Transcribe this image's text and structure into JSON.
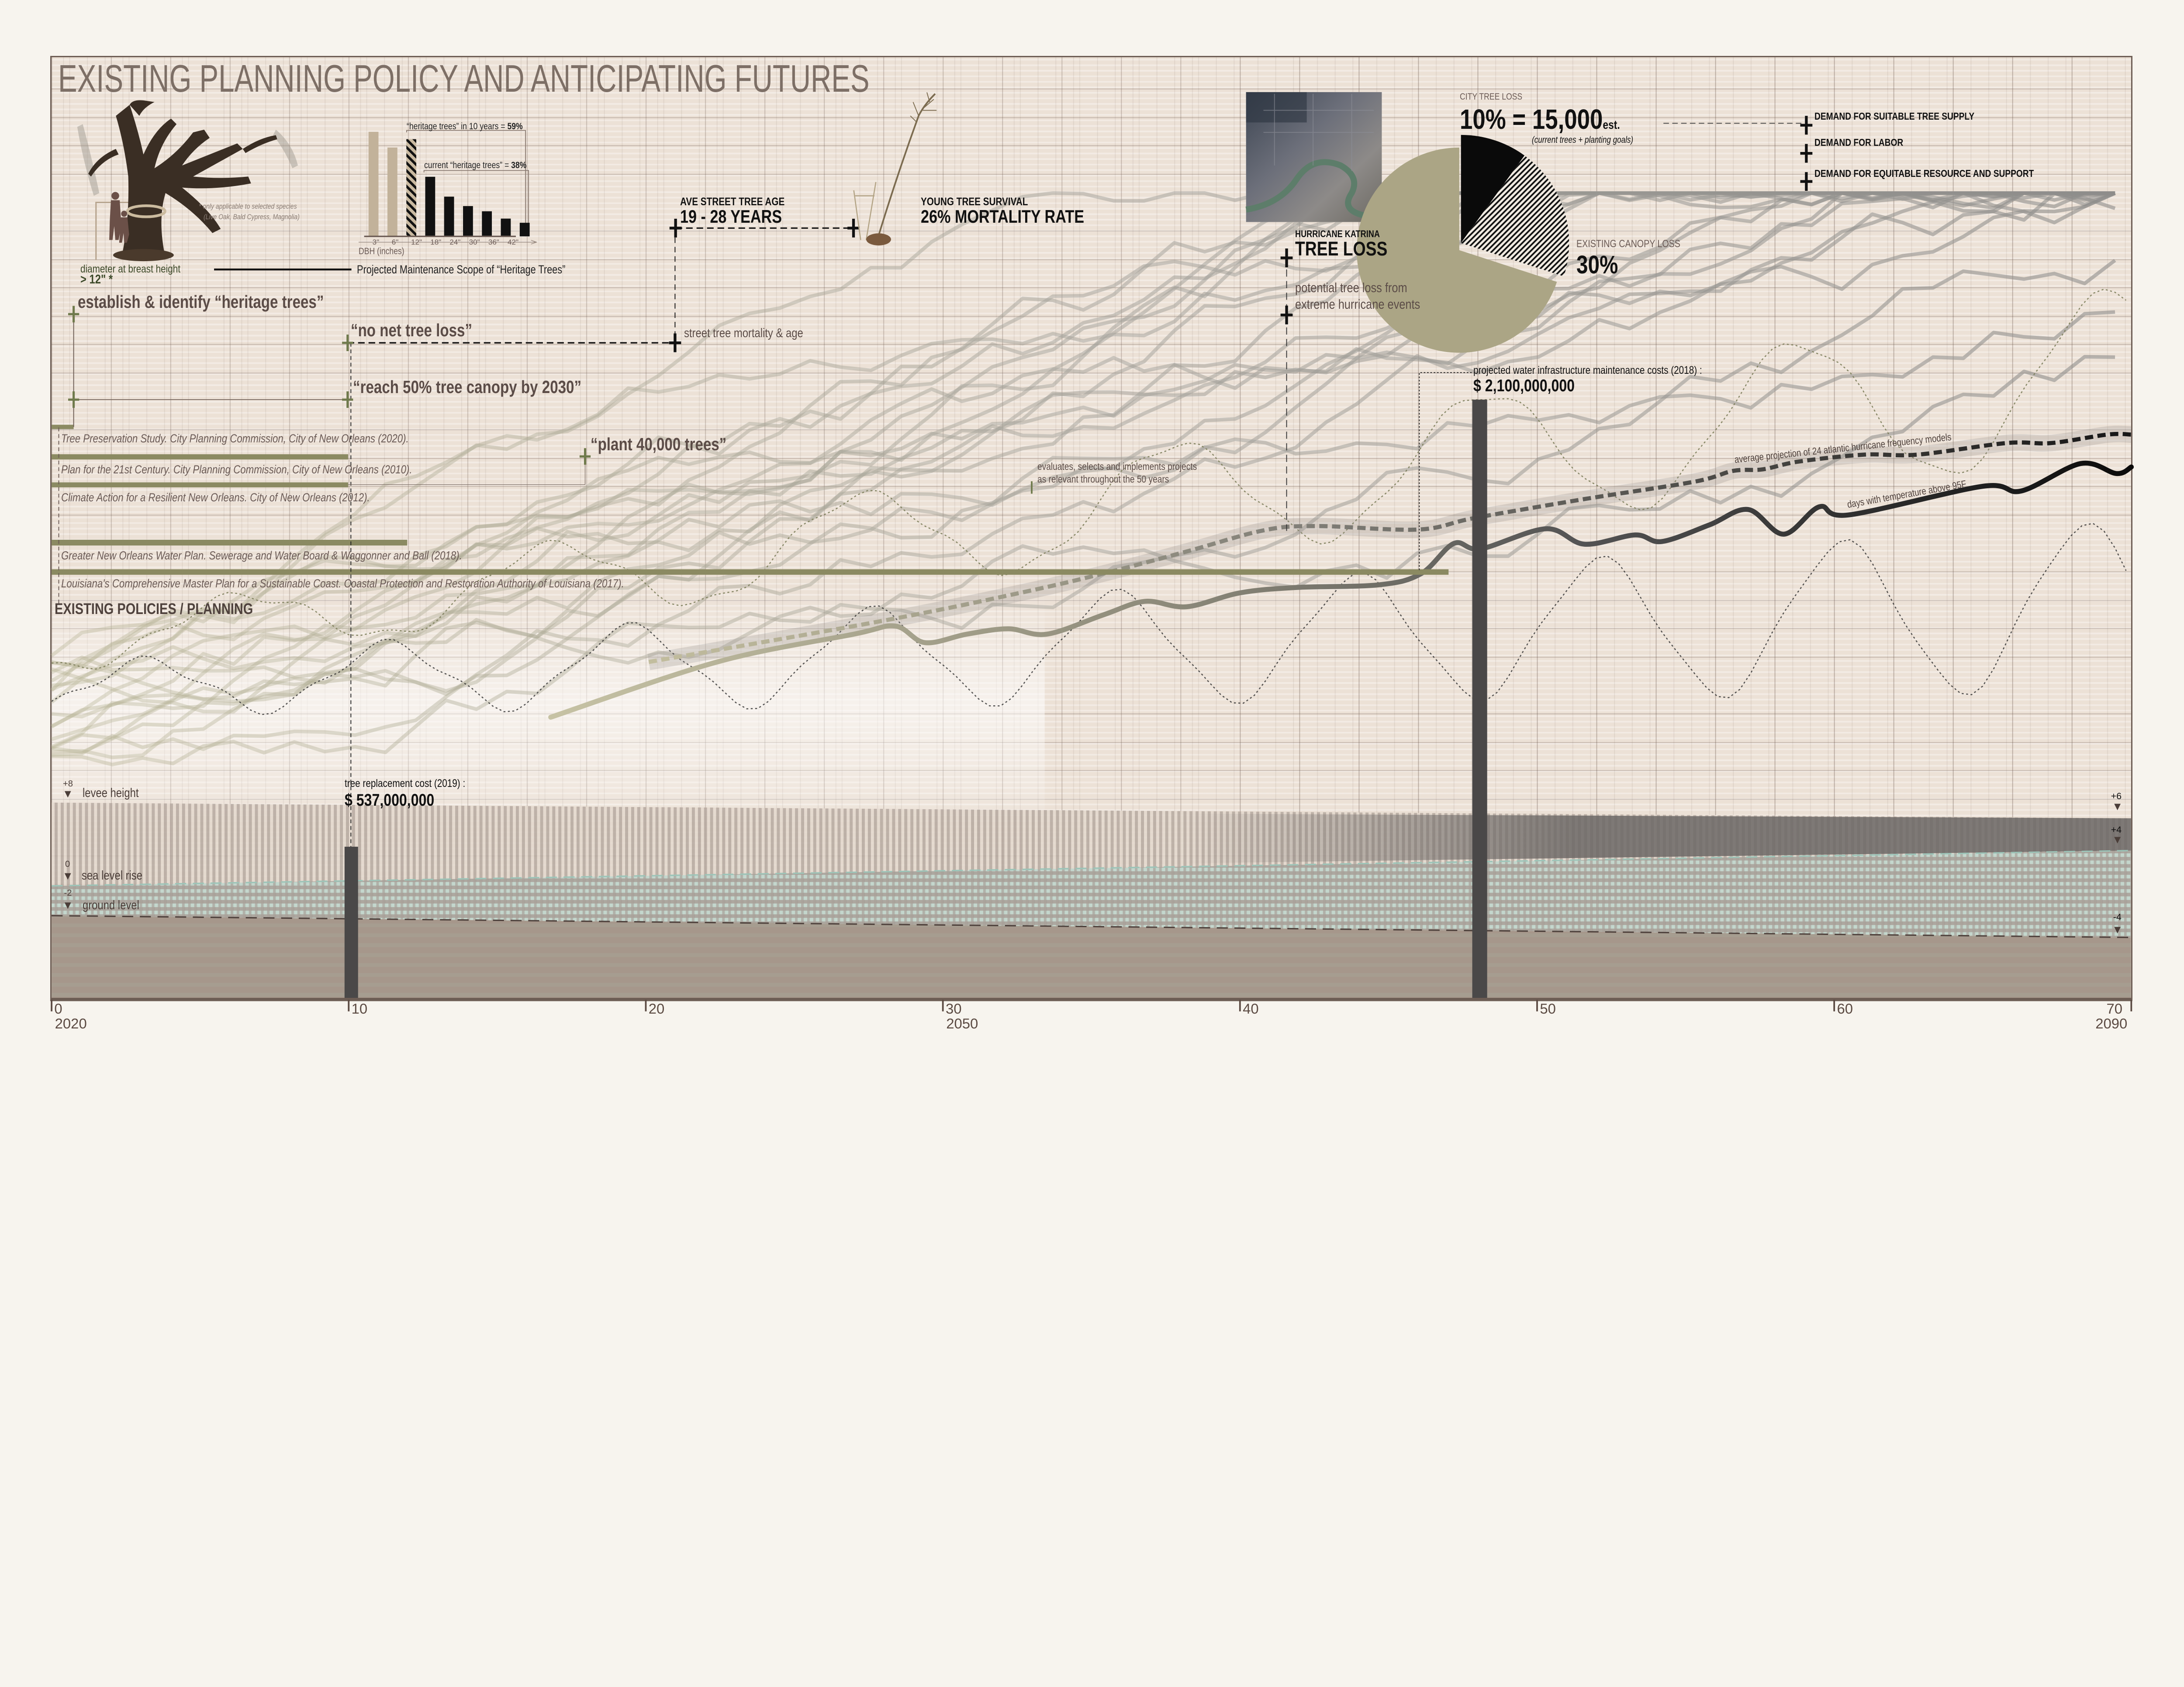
{
  "title": "EXISTING PLANNING POLICY AND ANTICIPATING FUTURES",
  "colors": {
    "olive": "#8b8a62",
    "olive_marker": "#6f7a4c",
    "frame": "#6d5d54",
    "pie_olive": "#aba585",
    "bar_dark": "#4a4848",
    "water": "#bcd6cd",
    "ground": "#a6978b"
  },
  "heritage": {
    "note_line1": "* only applicable to selected species",
    "note_line2": "(Live Oak, Bald Cypress, Magnolia)",
    "dbh_label": "diameter at breast height",
    "dbh_value": "> 12\" *",
    "scope_title": "Projected Maintenance Scope of “Heritage Trees”",
    "in10_label": "“heritage trees” in 10 years = ",
    "in10_value": "59%",
    "current_label": "current “heritage trees” = ",
    "current_value": "38%"
  },
  "street_tree": {
    "age_label": "AVE STREET TREE AGE",
    "age_value": "19 - 28 YEARS",
    "survival_label": "YOUNG TREE SURVIVAL",
    "survival_value": "26% MORTALITY RATE",
    "mortality_note": "street tree mortality & age"
  },
  "goals": {
    "heritage": "establish & identify “heritage trees”",
    "no_net_loss": "“no net tree loss”",
    "canopy": "“reach 50% tree canopy by 2030”",
    "plant": "“plant 40,000 trees”"
  },
  "policies": {
    "items": [
      "Tree Preservation Study. City Planning Commission, City of New Orleans (2020).",
      "Plan for the 21st Century. City Planning Commission, City of New Orleans (2010).",
      "Climate Action for a Resilient New Orleans. City of New Orleans  (2012).",
      "Greater New Orleans Water Plan. Sewerage and Water Board & Waggonner and Ball (2018).",
      "Louisiana's Comprehensive Master Plan for a Sustainable Coast. Coastal Protection and Restoration Authority of Louisiana (2017)."
    ],
    "section_label": "EXISTING POLICIES / PLANNING",
    "evaluates_line1": "evaluates, selects and implements projects",
    "evaluates_line2": "as relevant throughout the 50 years"
  },
  "katrina": {
    "city_loss_label": "CITY TREE LOSS",
    "city_loss_value": "10% = 15,000",
    "city_loss_suffix": "est.",
    "city_loss_note": "(current trees + planting goals)",
    "heading_small": "HURRICANE KATRINA",
    "heading_big": "TREE LOSS",
    "potential_line1": "potential tree loss from",
    "potential_line2": "extreme hurricane events",
    "canopy_label": "EXISTING CANOPY LOSS",
    "canopy_value": "30%",
    "demands": [
      "DEMAND FOR SUITABLE TREE SUPPLY",
      "DEMAND FOR LABOR",
      "DEMAND FOR EQUITABLE RESOURCE AND SUPPORT"
    ]
  },
  "costs": {
    "water_label": "projected water infrastructure maintenance costs (2018) :",
    "water_value": "$ 2,100,000,000",
    "tree_label": "tree replacement cost (2019) :",
    "tree_value": "$ 537,000,000"
  },
  "levee": {
    "left": [
      {
        "value": "+8",
        "label": "levee height"
      },
      {
        "value": "0",
        "label": "sea level rise"
      },
      {
        "value": "-2",
        "label": "ground level"
      }
    ],
    "right": [
      "+6",
      "+4",
      "-4"
    ],
    "triangle": "▼"
  },
  "chart_data": [
    {
      "type": "bar",
      "title": "Projected Maintenance Scope of “Heritage Trees”",
      "xlabel": "DBH (inches)",
      "tick_labels": [
        "3\"",
        "6\"",
        "12\"",
        "18\"",
        "24\"",
        "30\"",
        "36\"",
        "42\""
      ],
      "values": [
        100,
        85,
        93,
        57,
        38,
        29,
        24,
        17,
        13
      ],
      "styles": [
        "tan",
        "tan",
        "hatched",
        "black",
        "black",
        "black",
        "black",
        "black",
        "black"
      ],
      "y_units": "relative tree count (unlabeled)"
    },
    {
      "type": "pie",
      "title": "CITY TREE LOSS",
      "slices": [
        {
          "name": "city tree loss",
          "value": 10,
          "style": "black"
        },
        {
          "name": "existing canopy loss (additional)",
          "value": 20,
          "style": "hatched"
        },
        {
          "name": "remaining canopy",
          "value": 70,
          "style": "olive"
        }
      ]
    },
    {
      "type": "line",
      "x_ticks": [
        0,
        10,
        20,
        30,
        40,
        50,
        60,
        70
      ],
      "x_year_labels": [
        {
          "t": 0,
          "year": "2020"
        },
        {
          "t": 30,
          "year": "2050"
        },
        {
          "t": 70,
          "year": "2090"
        }
      ],
      "y_units": "relative index (unlabeled)",
      "series": [
        {
          "name": "average projection of 24 atlantic hurricane frequency models",
          "style": "dashed",
          "points": [
            [
              20.1,
              35.7
            ],
            [
              28,
              46.4
            ],
            [
              32.6,
              53.6
            ],
            [
              35.4,
              58.6
            ],
            [
              38.2,
              64.3
            ],
            [
              40.8,
              69.8
            ],
            [
              42.6,
              70.9
            ],
            [
              46,
              70
            ],
            [
              47.9,
              73
            ],
            [
              51.6,
              77.9
            ],
            [
              55.3,
              82.4
            ],
            [
              56.6,
              85.2
            ],
            [
              57.6,
              85.6
            ],
            [
              58.8,
              87.6
            ],
            [
              61,
              89.4
            ],
            [
              62.8,
              89.4
            ],
            [
              65.8,
              92.4
            ],
            [
              67.3,
              92.4
            ],
            [
              69.2,
              94.6
            ],
            [
              70,
              94.6
            ]
          ]
        },
        {
          "name": "days with temperature above 95F",
          "style": "solid",
          "points": [
            [
              16.8,
              21.4
            ],
            [
              22.4,
              35.7
            ],
            [
              27,
              42.9
            ],
            [
              28.4,
              45
            ],
            [
              29.4,
              40.7
            ],
            [
              30.8,
              42.9
            ],
            [
              32.2,
              44.3
            ],
            [
              33.5,
              42.9
            ],
            [
              35.4,
              47.9
            ],
            [
              36.8,
              51.4
            ],
            [
              38.2,
              50
            ],
            [
              40,
              53.6
            ],
            [
              41.9,
              55
            ],
            [
              44.7,
              55.7
            ],
            [
              46.1,
              58.6
            ],
            [
              47.2,
              66.4
            ],
            [
              48.1,
              65
            ],
            [
              50.3,
              70.2
            ],
            [
              51.6,
              66.2
            ],
            [
              53.3,
              68.6
            ],
            [
              54.2,
              66.9
            ],
            [
              55.8,
              71.2
            ],
            [
              57.1,
              75.2
            ],
            [
              58.3,
              68.8
            ],
            [
              59.5,
              75.9
            ],
            [
              60.5,
              73.8
            ],
            [
              65,
              81.2
            ],
            [
              66.3,
              80
            ],
            [
              68.3,
              87.1
            ],
            [
              69.5,
              84.5
            ],
            [
              70,
              86.2
            ]
          ]
        }
      ]
    }
  ]
}
